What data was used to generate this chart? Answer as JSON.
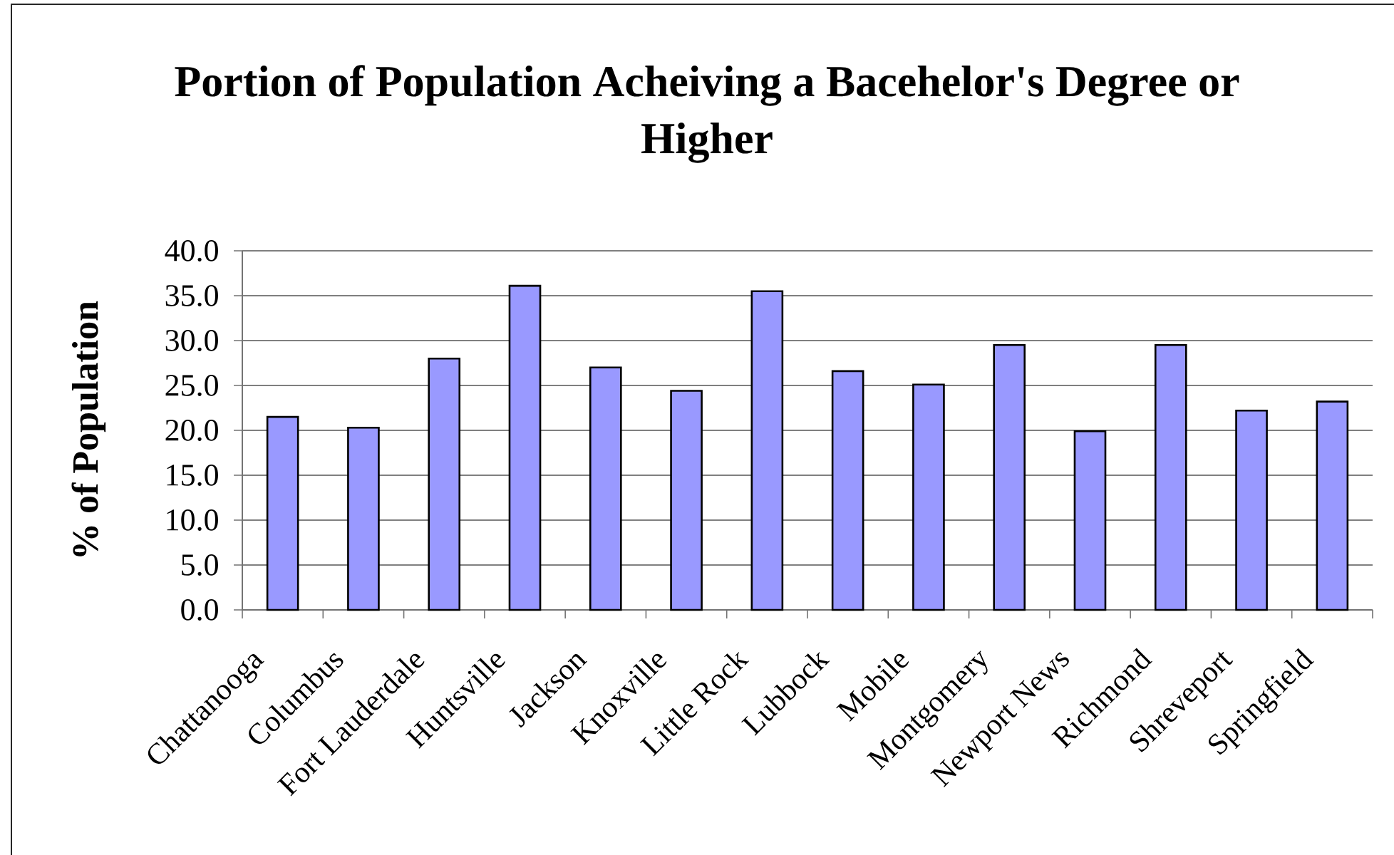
{
  "chart_data": {
    "type": "bar",
    "title": "Portion of Population Acheiving a Bacehelor's Degree or Higher",
    "ylabel": "% of Population",
    "categories": [
      "Chattanooga",
      "Columbus",
      "Fort Lauderdale",
      "Huntsville",
      "Jackson",
      "Knoxville",
      "Little Rock",
      "Lubbock",
      "Mobile",
      "Montgomery",
      "Newport News",
      "Richmond",
      "Shreveport",
      "Springfield"
    ],
    "values": [
      21.5,
      20.3,
      28.0,
      36.1,
      27.0,
      24.4,
      35.5,
      26.6,
      25.1,
      29.5,
      19.9,
      29.5,
      22.2,
      23.2
    ],
    "color": "#9999ff",
    "ylim": [
      0,
      40
    ],
    "yticks": [
      {
        "value": 0,
        "label": "0.0"
      },
      {
        "value": 5,
        "label": "5.0"
      },
      {
        "value": 10,
        "label": "10.0"
      },
      {
        "value": 15,
        "label": "15.0"
      },
      {
        "value": 20,
        "label": "20.0"
      },
      {
        "value": 25,
        "label": "25.0"
      },
      {
        "value": 30,
        "label": "30.0"
      },
      {
        "value": 35,
        "label": "35.0"
      },
      {
        "value": 40,
        "label": "40.0"
      }
    ],
    "grid": "y"
  }
}
